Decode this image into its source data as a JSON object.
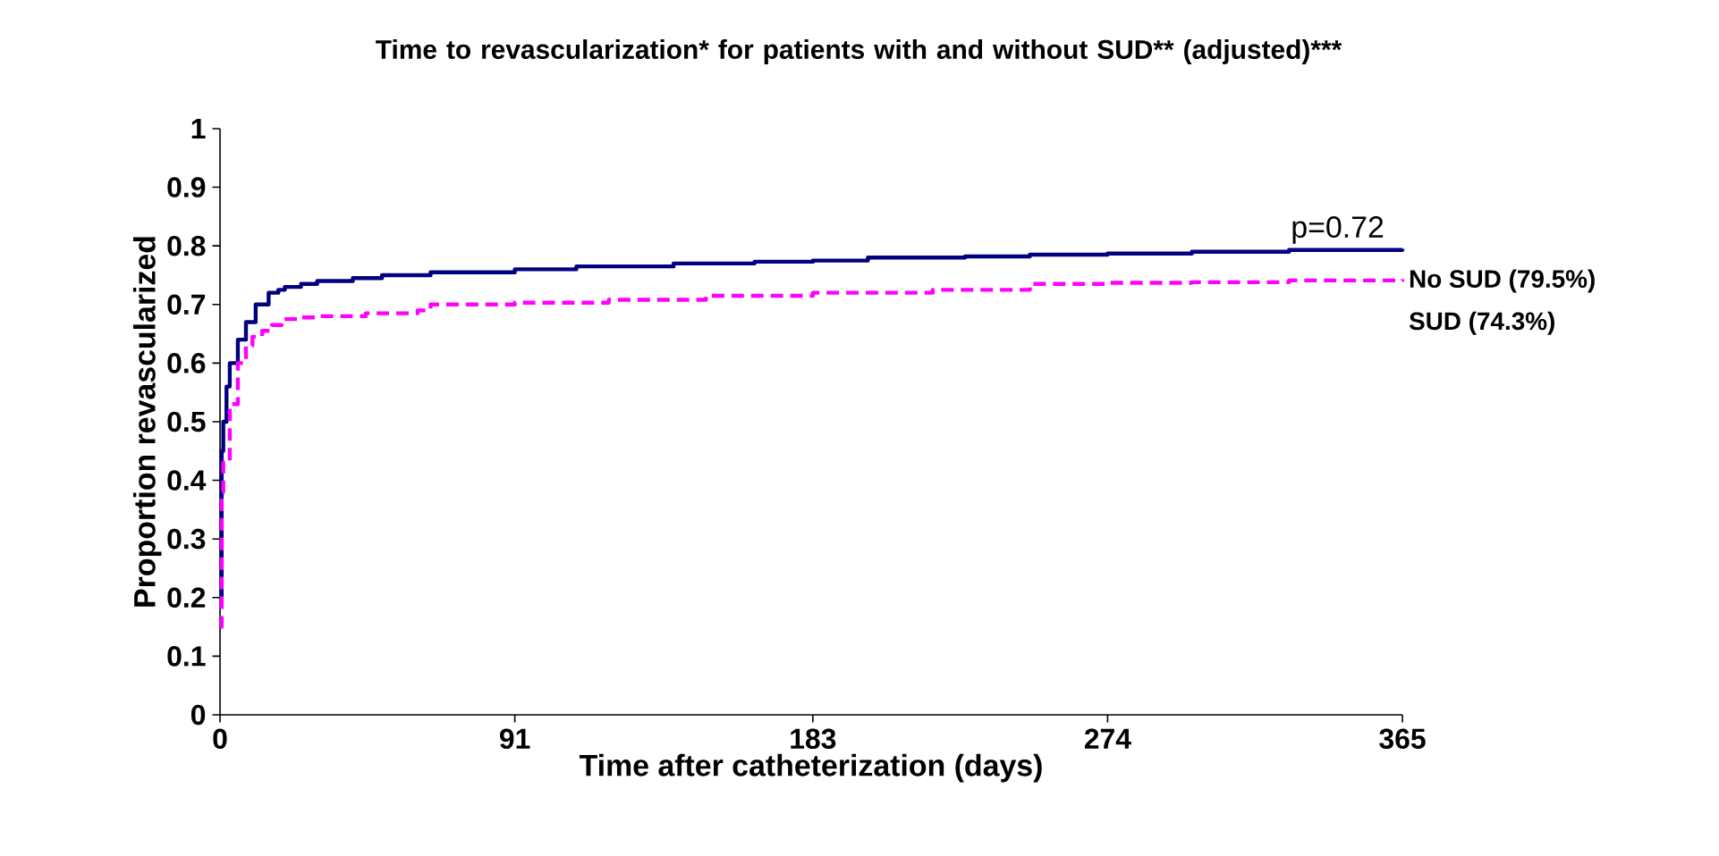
{
  "chart_data": {
    "type": "step",
    "title": "Time to  revascularization* for patients with and without SUD** (adjusted)***",
    "xlabel": "Time after catheterization (days)",
    "ylabel": "Proportion revascularized",
    "xlim": [
      0,
      365
    ],
    "xticks": [
      0,
      91,
      183,
      274,
      365
    ],
    "ylim": [
      0,
      1
    ],
    "yticks": [
      0,
      0.1,
      0.2,
      0.3,
      0.4,
      0.5,
      0.6,
      0.7,
      0.8,
      0.9,
      1
    ],
    "grid": false,
    "legend": false,
    "marker": "none",
    "series": [
      {
        "name": "No SUD (79.5%)",
        "color": "#000080",
        "line_style": "solid",
        "x": [
          0,
          0.5,
          1,
          2,
          3,
          5.5,
          8,
          11,
          15,
          18,
          20,
          25,
          30,
          41,
          50,
          65,
          91,
          110,
          140,
          165,
          183,
          200,
          230,
          250,
          274,
          300,
          330,
          365
        ],
        "values": [
          0.2,
          0.45,
          0.5,
          0.56,
          0.6,
          0.64,
          0.67,
          0.7,
          0.72,
          0.725,
          0.73,
          0.735,
          0.74,
          0.745,
          0.75,
          0.755,
          0.76,
          0.765,
          0.77,
          0.773,
          0.775,
          0.78,
          0.782,
          0.785,
          0.787,
          0.79,
          0.793,
          0.795
        ]
      },
      {
        "name": "SUD (74.3%)",
        "color": "#ff00ff",
        "line_style": "dashed",
        "x": [
          0,
          0.5,
          1,
          3,
          5.5,
          8,
          10,
          13,
          16,
          19,
          25,
          30,
          45,
          61,
          65,
          91,
          120,
          150,
          183,
          220,
          250,
          274,
          300,
          330,
          365
        ],
        "values": [
          0.15,
          0.38,
          0.43,
          0.53,
          0.6,
          0.63,
          0.645,
          0.655,
          0.665,
          0.675,
          0.678,
          0.68,
          0.685,
          0.69,
          0.7,
          0.703,
          0.708,
          0.715,
          0.72,
          0.725,
          0.735,
          0.737,
          0.738,
          0.741,
          0.743
        ]
      }
    ],
    "annotations": [
      {
        "text": "p=0.72",
        "x": 345,
        "y": 0.8
      }
    ]
  }
}
